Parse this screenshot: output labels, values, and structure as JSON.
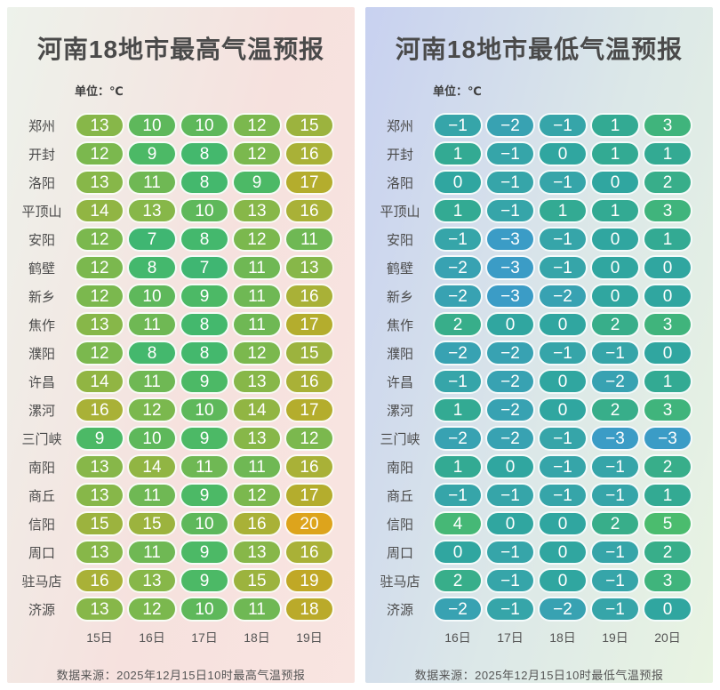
{
  "chart_data": [
    {
      "type": "heatmap",
      "panel": "max-temperature",
      "title": "河南18地市最高气温预报",
      "unit": "单位：℃",
      "columns": [
        "15日",
        "16日",
        "17日",
        "18日",
        "19日"
      ],
      "rows": [
        "郑州",
        "开封",
        "洛阳",
        "平顶山",
        "安阳",
        "鹤壁",
        "新乡",
        "焦作",
        "濮阳",
        "许昌",
        "漯河",
        "三门峡",
        "南阳",
        "商丘",
        "信阳",
        "周口",
        "驻马店",
        "济源"
      ],
      "values": [
        [
          13,
          10,
          10,
          12,
          15
        ],
        [
          12,
          9,
          8,
          12,
          16
        ],
        [
          13,
          11,
          8,
          9,
          17
        ],
        [
          14,
          13,
          10,
          13,
          16
        ],
        [
          12,
          7,
          8,
          12,
          11
        ],
        [
          12,
          8,
          7,
          11,
          13
        ],
        [
          12,
          10,
          9,
          11,
          16
        ],
        [
          13,
          11,
          8,
          11,
          17
        ],
        [
          12,
          8,
          8,
          12,
          15
        ],
        [
          14,
          11,
          9,
          13,
          16
        ],
        [
          16,
          12,
          10,
          14,
          17
        ],
        [
          9,
          10,
          9,
          13,
          12
        ],
        [
          13,
          14,
          11,
          11,
          16
        ],
        [
          13,
          11,
          9,
          12,
          17
        ],
        [
          15,
          15,
          10,
          16,
          20
        ],
        [
          13,
          11,
          9,
          13,
          16
        ],
        [
          16,
          13,
          9,
          15,
          19
        ],
        [
          13,
          12,
          10,
          11,
          18
        ]
      ],
      "source": "数据来源：2025年12月15日10时最高气温预报",
      "value_colors": {
        "7": "#3fb672",
        "8": "#44b86d",
        "9": "#4cb966",
        "10": "#5eb85b",
        "11": "#6fb854",
        "12": "#7bb84e",
        "13": "#87b749",
        "14": "#91b543",
        "15": "#9cb33e",
        "16": "#a9b137",
        "17": "#b4ad2d",
        "18": "#baaa2a",
        "19": "#c0a826",
        "20": "#dda41c"
      },
      "background_gradient": [
        "#edf2eb",
        "#f6e1de",
        "#f9e5e1"
      ]
    },
    {
      "type": "heatmap",
      "panel": "min-temperature",
      "title": "河南18地市最低气温预报",
      "unit": "单位：℃",
      "columns": [
        "16日",
        "17日",
        "18日",
        "19日",
        "20日"
      ],
      "rows": [
        "郑州",
        "开封",
        "洛阳",
        "平顶山",
        "安阳",
        "鹤壁",
        "新乡",
        "焦作",
        "濮阳",
        "许昌",
        "漯河",
        "三门峡",
        "南阳",
        "商丘",
        "信阳",
        "周口",
        "驻马店",
        "济源"
      ],
      "values": [
        [
          -1,
          -2,
          -1,
          1,
          3
        ],
        [
          1,
          -1,
          0,
          1,
          1
        ],
        [
          0,
          -1,
          -1,
          0,
          2
        ],
        [
          1,
          -1,
          1,
          1,
          3
        ],
        [
          -1,
          -3,
          -1,
          0,
          1
        ],
        [
          -2,
          -3,
          -1,
          0,
          0
        ],
        [
          -2,
          -3,
          -2,
          0,
          0
        ],
        [
          2,
          0,
          0,
          2,
          3
        ],
        [
          -2,
          -2,
          -1,
          -1,
          0
        ],
        [
          -1,
          -2,
          0,
          -2,
          1
        ],
        [
          1,
          -2,
          0,
          2,
          3
        ],
        [
          -2,
          -2,
          -1,
          -3,
          -3
        ],
        [
          1,
          0,
          -1,
          -1,
          2
        ],
        [
          -1,
          -1,
          -1,
          -1,
          1
        ],
        [
          4,
          0,
          0,
          2,
          5
        ],
        [
          0,
          -1,
          0,
          -1,
          2
        ],
        [
          2,
          -1,
          0,
          -1,
          3
        ],
        [
          -2,
          -1,
          -2,
          -1,
          0
        ]
      ],
      "source": "数据来源：2025年12月15日10时最低气温预报",
      "value_colors": {
        "-3": "#3b9cc6",
        "-2": "#38a2b2",
        "-1": "#36a5a9",
        "0": "#30a6a0",
        "1": "#33aa93",
        "2": "#38ae8a",
        "3": "#40b47c",
        "4": "#46b876",
        "5": "#4bbc6e"
      },
      "background_gradient": [
        "#c8d1f0",
        "#dce8e8",
        "#e9f4e2"
      ]
    }
  ]
}
